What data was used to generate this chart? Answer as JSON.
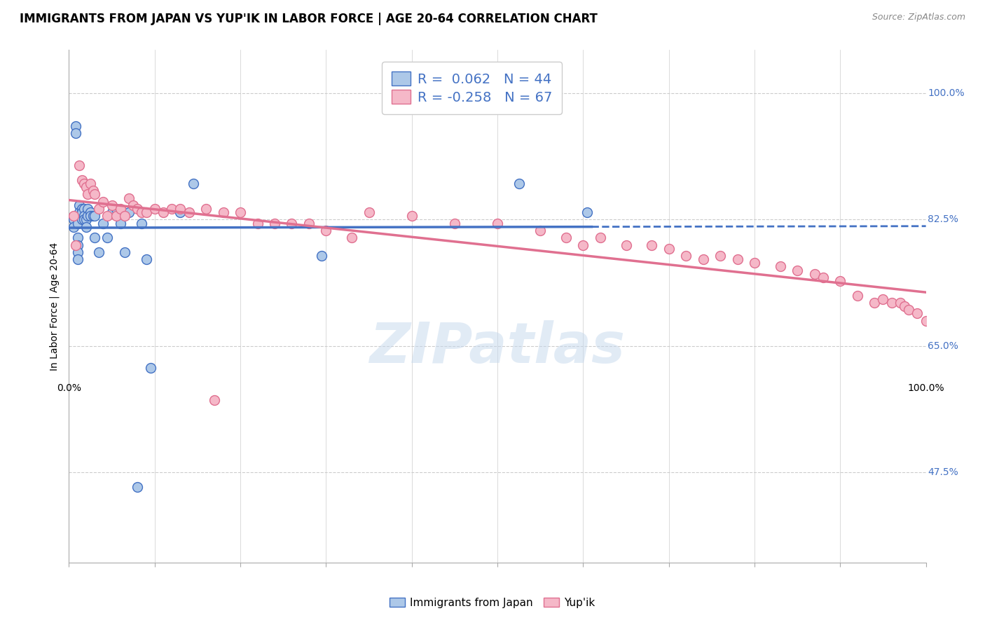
{
  "title": "IMMIGRANTS FROM JAPAN VS YUP'IK IN LABOR FORCE | AGE 20-64 CORRELATION CHART",
  "source": "Source: ZipAtlas.com",
  "ylabel": "In Labor Force | Age 20-64",
  "xlim": [
    0.0,
    1.0
  ],
  "ylim": [
    0.35,
    1.06
  ],
  "yticks": [
    0.475,
    0.65,
    0.825,
    1.0
  ],
  "ytick_labels": [
    "47.5%",
    "65.0%",
    "82.5%",
    "100.0%"
  ],
  "legend_r1": "R =  0.062",
  "legend_n1": "N = 44",
  "legend_r2": "R = -0.258",
  "legend_n2": "N = 67",
  "color_japan": "#adc8e8",
  "color_yupik": "#f5b8c8",
  "color_japan_line": "#4472c4",
  "color_yupik_line": "#e07090",
  "watermark": "ZIPatlas",
  "japan_x": [
    0.005,
    0.005,
    0.008,
    0.008,
    0.01,
    0.01,
    0.01,
    0.01,
    0.01,
    0.01,
    0.012,
    0.012,
    0.015,
    0.015,
    0.015,
    0.018,
    0.018,
    0.018,
    0.02,
    0.02,
    0.022,
    0.022,
    0.025,
    0.025,
    0.028,
    0.03,
    0.03,
    0.035,
    0.04,
    0.045,
    0.05,
    0.055,
    0.06,
    0.065,
    0.07,
    0.085,
    0.09,
    0.095,
    0.13,
    0.145,
    0.295,
    0.525,
    0.605,
    0.08
  ],
  "japan_y": [
    0.825,
    0.815,
    0.955,
    0.945,
    0.83,
    0.82,
    0.8,
    0.79,
    0.78,
    0.77,
    0.845,
    0.835,
    0.84,
    0.835,
    0.825,
    0.84,
    0.83,
    0.825,
    0.825,
    0.815,
    0.84,
    0.83,
    0.835,
    0.83,
    0.83,
    0.83,
    0.8,
    0.78,
    0.82,
    0.8,
    0.835,
    0.84,
    0.82,
    0.78,
    0.835,
    0.82,
    0.77,
    0.62,
    0.835,
    0.875,
    0.775,
    0.875,
    0.835,
    0.455
  ],
  "yupik_x": [
    0.005,
    0.008,
    0.012,
    0.015,
    0.018,
    0.02,
    0.022,
    0.025,
    0.028,
    0.03,
    0.035,
    0.04,
    0.045,
    0.05,
    0.055,
    0.06,
    0.065,
    0.07,
    0.075,
    0.08,
    0.085,
    0.09,
    0.1,
    0.11,
    0.12,
    0.13,
    0.14,
    0.16,
    0.18,
    0.2,
    0.22,
    0.24,
    0.26,
    0.28,
    0.3,
    0.35,
    0.4,
    0.45,
    0.5,
    0.55,
    0.58,
    0.6,
    0.62,
    0.65,
    0.68,
    0.7,
    0.72,
    0.74,
    0.76,
    0.78,
    0.8,
    0.83,
    0.85,
    0.87,
    0.88,
    0.9,
    0.92,
    0.94,
    0.95,
    0.96,
    0.97,
    0.975,
    0.98,
    0.99,
    1.0,
    0.17,
    0.33
  ],
  "yupik_y": [
    0.83,
    0.79,
    0.9,
    0.88,
    0.875,
    0.87,
    0.86,
    0.875,
    0.865,
    0.86,
    0.84,
    0.85,
    0.83,
    0.845,
    0.83,
    0.84,
    0.83,
    0.855,
    0.845,
    0.84,
    0.835,
    0.835,
    0.84,
    0.835,
    0.84,
    0.84,
    0.835,
    0.84,
    0.835,
    0.835,
    0.82,
    0.82,
    0.82,
    0.82,
    0.81,
    0.835,
    0.83,
    0.82,
    0.82,
    0.81,
    0.8,
    0.79,
    0.8,
    0.79,
    0.79,
    0.785,
    0.775,
    0.77,
    0.775,
    0.77,
    0.765,
    0.76,
    0.755,
    0.75,
    0.745,
    0.74,
    0.72,
    0.71,
    0.715,
    0.71,
    0.71,
    0.705,
    0.7,
    0.695,
    0.685,
    0.575,
    0.8
  ],
  "background_color": "#ffffff",
  "grid_color": "#cccccc",
  "title_fontsize": 12,
  "source_fontsize": 9,
  "axis_label_fontsize": 10,
  "tick_fontsize": 10,
  "legend_fontsize": 14
}
